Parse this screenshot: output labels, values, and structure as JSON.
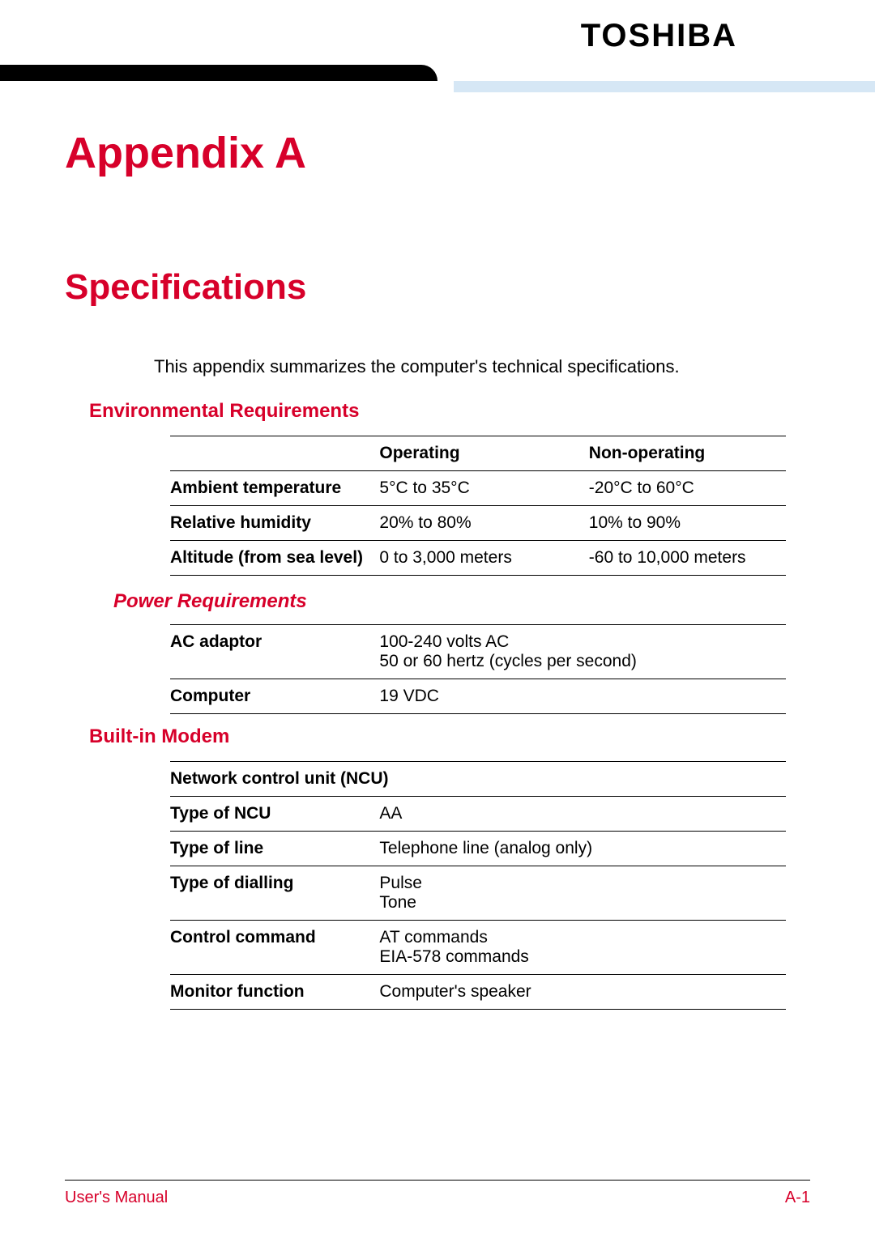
{
  "brand": "TOSHIBA",
  "colors": {
    "accent": "#d7002a",
    "banner_blue": "#d6e7f5",
    "black": "#000000",
    "text": "#000000",
    "bg": "#ffffff"
  },
  "appendix_title": "Appendix A",
  "page_title": "Specifications",
  "intro": "This appendix summarizes the computer's technical specifications.",
  "env": {
    "heading": "Environmental Requirements",
    "columns": [
      "",
      "Operating",
      "Non-operating"
    ],
    "rows": [
      {
        "label": "Ambient temperature",
        "operating": "5°C to 35°C",
        "nonoperating": "-20°C to 60°C"
      },
      {
        "label": "Relative humidity",
        "operating": "20% to 80%",
        "nonoperating": "10% to 90%"
      },
      {
        "label": "Altitude (from sea level)",
        "operating": "0 to 3,000 meters",
        "nonoperating": "-60 to 10,000 meters"
      }
    ]
  },
  "power": {
    "heading": "Power Requirements",
    "rows": [
      {
        "label": "AC adaptor",
        "value": "100-240 volts AC\n50 or 60 hertz (cycles per second)"
      },
      {
        "label": "Computer",
        "value": "19 VDC"
      }
    ]
  },
  "modem": {
    "heading": "Built-in Modem",
    "group_header": "Network control unit (NCU)",
    "rows": [
      {
        "label": "Type of NCU",
        "value": "AA"
      },
      {
        "label": "Type of line",
        "value": "Telephone line (analog only)"
      },
      {
        "label": "Type of dialling",
        "value": "Pulse\nTone"
      },
      {
        "label": "Control command",
        "value": "AT commands\nEIA-578 commands"
      },
      {
        "label": "Monitor function",
        "value": "Computer's speaker"
      }
    ]
  },
  "footer": {
    "left": "User's Manual",
    "right": "A-1"
  }
}
